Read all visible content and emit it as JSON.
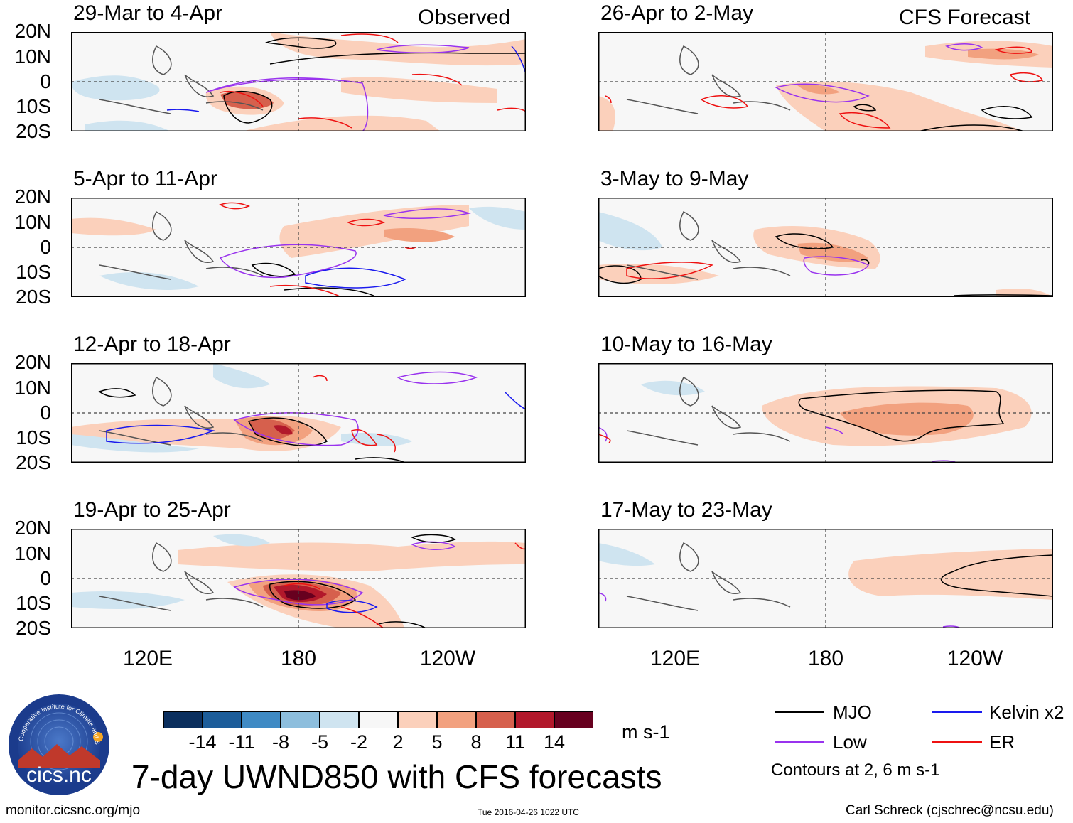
{
  "panels": [
    {
      "title": "29-Mar to 4-Apr",
      "tag": "Observed"
    },
    {
      "title": "5-Apr to 11-Apr",
      "tag": ""
    },
    {
      "title": "12-Apr to 18-Apr",
      "tag": ""
    },
    {
      "title": "19-Apr to 25-Apr",
      "tag": ""
    },
    {
      "title": "26-Apr to 2-May",
      "tag": "CFS Forecast"
    },
    {
      "title": "3-May to 9-May",
      "tag": ""
    },
    {
      "title": "10-May to 16-May",
      "tag": ""
    },
    {
      "title": "17-May to 23-May",
      "tag": ""
    }
  ],
  "lat_labels": [
    "20N",
    "10N",
    "0",
    "10S",
    "20S"
  ],
  "lon_labels": [
    "120E",
    "180",
    "120W"
  ],
  "colorbar": {
    "ticks": [
      "-14",
      "-11",
      "-8",
      "-5",
      "-2",
      "2",
      "5",
      "8",
      "11",
      "14"
    ],
    "colors": [
      "#0b2f5e",
      "#1c5d9a",
      "#3f8ac4",
      "#8dbedd",
      "#cfe4f0",
      "#f7f7f7",
      "#fbd0bb",
      "#f2a17f",
      "#d6604d",
      "#b2182b",
      "#67001f"
    ],
    "units": "m s-1"
  },
  "main_title": "7-day UWND850 with CFS forecasts",
  "legend": {
    "items": [
      {
        "label": "MJO",
        "color": "#000000"
      },
      {
        "label": "Kelvin x2",
        "color": "#1a1aee"
      },
      {
        "label": "Low",
        "color": "#9933ee"
      },
      {
        "label": "ER",
        "color": "#ee1111"
      }
    ],
    "contour_note": "Contours at 2, 6 m s-1"
  },
  "logo_text": "cics.nc",
  "logo_ring_text": "Cooperative Institute for Climate and Satellites",
  "footer": {
    "url": "monitor.cicsnc.org/mjo",
    "timestamp": "Tue 2016-04-26 1022 UTC",
    "author": "Carl Schreck (cjschrec@ncsu.edu)"
  }
}
